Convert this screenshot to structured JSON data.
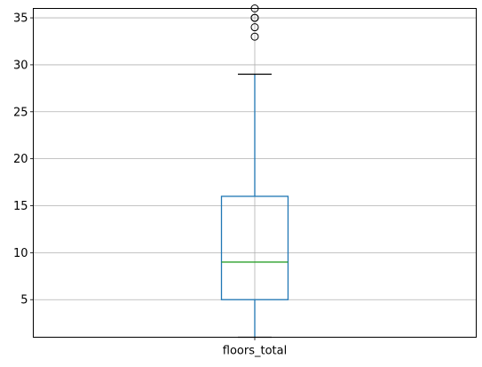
{
  "chart_data": {
    "type": "box",
    "categories": [
      "floors_total"
    ],
    "ylim": [
      1,
      36
    ],
    "yticks": [
      5,
      10,
      15,
      20,
      25,
      30,
      35
    ],
    "grid": true,
    "boxes": [
      {
        "category": "floors_total",
        "whisker_low": 1,
        "q1": 5,
        "median": 9,
        "q3": 16,
        "whisker_high": 29,
        "outliers": [
          33,
          34,
          35,
          35,
          36
        ]
      }
    ],
    "colors": {
      "box": "#1f77b4",
      "median": "#2ca02c",
      "whisker_cap": "#000000",
      "outlier": "#000000",
      "grid": "#b0b0b0",
      "axes": "#000000"
    }
  }
}
